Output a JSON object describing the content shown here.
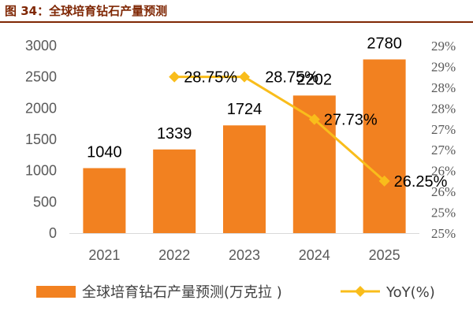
{
  "figure": {
    "title": "图 34：全球培育钻石产量预测"
  },
  "colors": {
    "bar": "#f28120",
    "line": "#f9bd1b",
    "title": "#7f2704",
    "axis_text": "#595959"
  },
  "chart_data": {
    "type": "bar",
    "categories": [
      "2021",
      "2022",
      "2023",
      "2024",
      "2025"
    ],
    "series": [
      {
        "name": "全球培育钻石产量预测(万克拉 )",
        "type": "bar",
        "axis": "left",
        "values": [
          1040,
          1339,
          1724,
          2202,
          2780
        ],
        "labels": [
          "1040",
          "1339",
          "1724",
          "2202",
          "2780"
        ]
      },
      {
        "name": "YoY(%)",
        "type": "line",
        "axis": "right",
        "marker": "diamond",
        "x": [
          "2022",
          "2023",
          "2024",
          "2025"
        ],
        "values": [
          28.75,
          28.75,
          27.73,
          26.25
        ],
        "labels": [
          "28.75%",
          "28.75%",
          "27.73%",
          "26.25%"
        ]
      }
    ],
    "y_left": {
      "ticks": [
        "0",
        "500",
        "1000",
        "1500",
        "2000",
        "2500",
        "3000"
      ],
      "ylim": [
        0,
        3000
      ]
    },
    "y_right": {
      "ticks": [
        "25%",
        "25%",
        "26%",
        "26%",
        "27%",
        "27%",
        "28%",
        "28%",
        "29%",
        "29%"
      ],
      "ylim": [
        25,
        29.5
      ]
    },
    "grid": false,
    "legend_position": "bottom"
  }
}
